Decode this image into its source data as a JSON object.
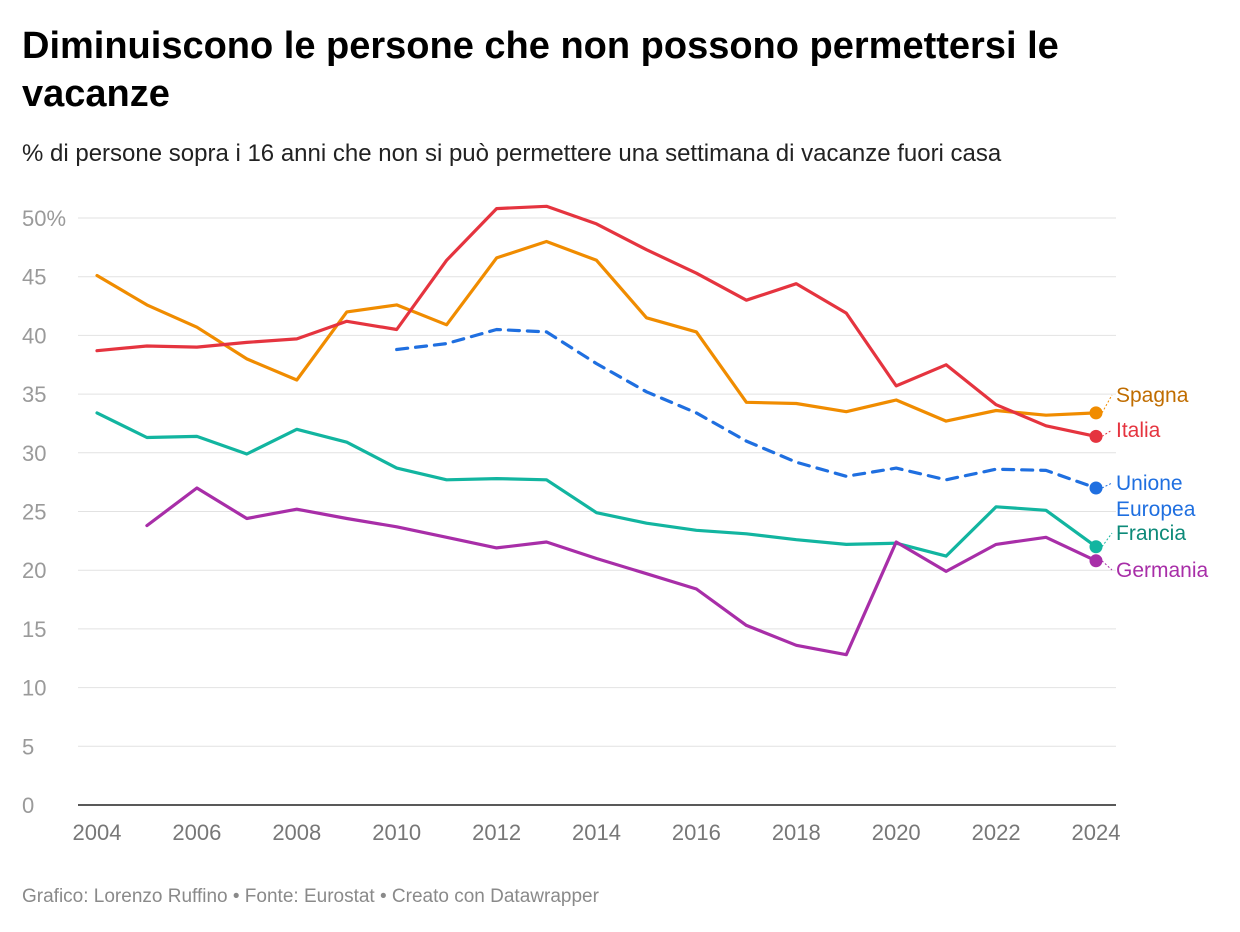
{
  "title": "Diminuiscono le persone che non possono permettersi le vacanze",
  "subtitle": "% di persone sopra i 16 anni che non si può permettere una settimana di vacanze fuori casa",
  "footer": "Grafico: Lorenzo Ruffino • Fonte: Eurostat • Creato con Datawrapper",
  "chart_data": {
    "type": "line",
    "xlim": [
      2004,
      2024
    ],
    "ylim": [
      0,
      50
    ],
    "x_ticks": [
      "2004",
      "2006",
      "2008",
      "2010",
      "2012",
      "2014",
      "2016",
      "2018",
      "2020",
      "2022",
      "2024"
    ],
    "y_ticks": [
      "0",
      "5",
      "10",
      "15",
      "20",
      "25",
      "30",
      "35",
      "40",
      "45",
      "50%"
    ],
    "series": [
      {
        "name": "Spagna",
        "label_lines": [
          "Spagna"
        ],
        "color": "#f08c00",
        "label_color": "#c06d00",
        "dashed": false,
        "points": [
          [
            2004,
            45.1
          ],
          [
            2005,
            42.6
          ],
          [
            2006,
            40.7
          ],
          [
            2007,
            38.0
          ],
          [
            2008,
            36.2
          ],
          [
            2009,
            42.0
          ],
          [
            2010,
            42.6
          ],
          [
            2011,
            40.9
          ],
          [
            2012,
            46.6
          ],
          [
            2013,
            48.0
          ],
          [
            2014,
            46.4
          ],
          [
            2015,
            41.5
          ],
          [
            2016,
            40.3
          ],
          [
            2017,
            34.3
          ],
          [
            2018,
            34.2
          ],
          [
            2019,
            33.5
          ],
          [
            2020,
            34.5
          ],
          [
            2021,
            32.7
          ],
          [
            2022,
            33.6
          ],
          [
            2023,
            33.2
          ],
          [
            2024,
            33.4
          ]
        ]
      },
      {
        "name": "Italia",
        "label_lines": [
          "Italia"
        ],
        "color": "#e5343f",
        "label_color": "#e5343f",
        "dashed": false,
        "points": [
          [
            2004,
            38.7
          ],
          [
            2005,
            39.1
          ],
          [
            2006,
            39.0
          ],
          [
            2007,
            39.4
          ],
          [
            2008,
            39.7
          ],
          [
            2009,
            41.2
          ],
          [
            2010,
            40.5
          ],
          [
            2011,
            46.4
          ],
          [
            2012,
            50.8
          ],
          [
            2013,
            51.0
          ],
          [
            2014,
            49.5
          ],
          [
            2015,
            47.3
          ],
          [
            2016,
            45.3
          ],
          [
            2017,
            43.0
          ],
          [
            2018,
            44.4
          ],
          [
            2019,
            41.9
          ],
          [
            2020,
            35.7
          ],
          [
            2021,
            37.5
          ],
          [
            2022,
            34.1
          ],
          [
            2023,
            32.3
          ],
          [
            2024,
            31.4
          ]
        ]
      },
      {
        "name": "Unione Europea",
        "label_lines": [
          "Unione",
          "Europea"
        ],
        "color": "#1f6fe0",
        "label_color": "#1f6fe0",
        "dashed": true,
        "points": [
          [
            2010,
            38.8
          ],
          [
            2011,
            39.3
          ],
          [
            2012,
            40.5
          ],
          [
            2013,
            40.3
          ],
          [
            2014,
            37.6
          ],
          [
            2015,
            35.2
          ],
          [
            2016,
            33.4
          ],
          [
            2017,
            31.0
          ],
          [
            2018,
            29.2
          ],
          [
            2019,
            28.0
          ],
          [
            2020,
            28.7
          ],
          [
            2021,
            27.7
          ],
          [
            2022,
            28.6
          ],
          [
            2023,
            28.5
          ],
          [
            2024,
            27.0
          ]
        ]
      },
      {
        "name": "Francia",
        "label_lines": [
          "Francia"
        ],
        "color": "#12b5a0",
        "label_color": "#0d8a79",
        "dashed": false,
        "points": [
          [
            2004,
            33.4
          ],
          [
            2005,
            31.3
          ],
          [
            2006,
            31.4
          ],
          [
            2007,
            29.9
          ],
          [
            2008,
            32.0
          ],
          [
            2009,
            30.9
          ],
          [
            2010,
            28.7
          ],
          [
            2011,
            27.7
          ],
          [
            2012,
            27.8
          ],
          [
            2013,
            27.7
          ],
          [
            2014,
            24.9
          ],
          [
            2015,
            24.0
          ],
          [
            2016,
            23.4
          ],
          [
            2017,
            23.1
          ],
          [
            2018,
            22.6
          ],
          [
            2019,
            22.2
          ],
          [
            2020,
            22.3
          ],
          [
            2021,
            21.2
          ],
          [
            2022,
            25.4
          ],
          [
            2023,
            25.1
          ],
          [
            2024,
            22.0
          ]
        ]
      },
      {
        "name": "Germania",
        "label_lines": [
          "Germania"
        ],
        "color": "#a82ea8",
        "label_color": "#a82ea8",
        "dashed": false,
        "points": [
          [
            2005,
            23.8
          ],
          [
            2006,
            27.0
          ],
          [
            2007,
            24.4
          ],
          [
            2008,
            25.2
          ],
          [
            2009,
            24.4
          ],
          [
            2010,
            23.7
          ],
          [
            2011,
            22.8
          ],
          [
            2012,
            21.9
          ],
          [
            2013,
            22.4
          ],
          [
            2014,
            21.0
          ],
          [
            2015,
            19.7
          ],
          [
            2016,
            18.4
          ],
          [
            2017,
            15.3
          ],
          [
            2018,
            13.6
          ],
          [
            2019,
            12.8
          ],
          [
            2020,
            22.4
          ],
          [
            2021,
            19.9
          ],
          [
            2022,
            22.2
          ],
          [
            2023,
            22.8
          ],
          [
            2024,
            20.8
          ]
        ]
      }
    ]
  }
}
